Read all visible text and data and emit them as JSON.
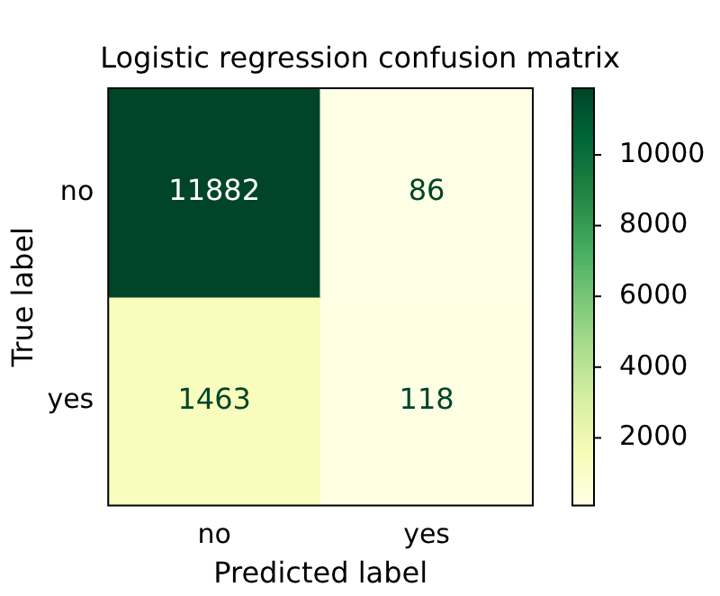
{
  "chart_data": {
    "type": "heatmap",
    "title": "Logistic regression confusion matrix",
    "xlabel": "Predicted label",
    "ylabel": "True label",
    "categories": [
      "no",
      "yes"
    ],
    "y_categories": [
      "no",
      "yes"
    ],
    "cells": [
      [
        11882,
        86
      ],
      [
        1463,
        118
      ]
    ],
    "clim": [
      86,
      11882
    ],
    "cticks": [
      2000,
      4000,
      6000,
      8000,
      10000
    ],
    "data_labels": true,
    "grid": false,
    "legend": false
  }
}
